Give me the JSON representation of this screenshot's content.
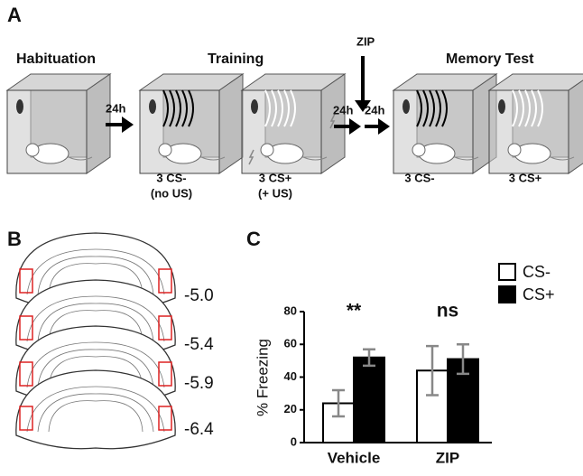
{
  "panel_a": {
    "label": "A",
    "stages": [
      "Habituation",
      "Training",
      "Memory Test"
    ],
    "drug": "ZIP",
    "intervals": [
      "24h",
      "24h",
      "24h"
    ],
    "conditions": [
      {
        "line1": "3 CS-",
        "line2": "(no US)"
      },
      {
        "line1": "3 CS+",
        "line2": "(+ US)"
      },
      {
        "line1": "3 CS-"
      },
      {
        "line1": "3 CS+"
      }
    ]
  },
  "panel_b": {
    "label": "B",
    "levels": [
      "-5.0",
      "-5.4",
      "-5.9",
      "-6.4"
    ]
  },
  "chart_data": {
    "type": "bar",
    "panel_label": "C",
    "y_label": "% Freezing",
    "categories": [
      "Vehicle",
      "ZIP"
    ],
    "series": [
      {
        "name": "CS-",
        "color": "#ffffff",
        "values": [
          24,
          44
        ],
        "errors": [
          8,
          15
        ]
      },
      {
        "name": "CS+",
        "color": "#000000",
        "values": [
          52,
          51
        ],
        "errors": [
          5,
          9
        ]
      }
    ],
    "annotations": [
      "**",
      "ns"
    ],
    "ylim": [
      0,
      80
    ],
    "yticks": [
      0,
      20,
      40,
      60,
      80
    ],
    "legend": "top-right"
  }
}
